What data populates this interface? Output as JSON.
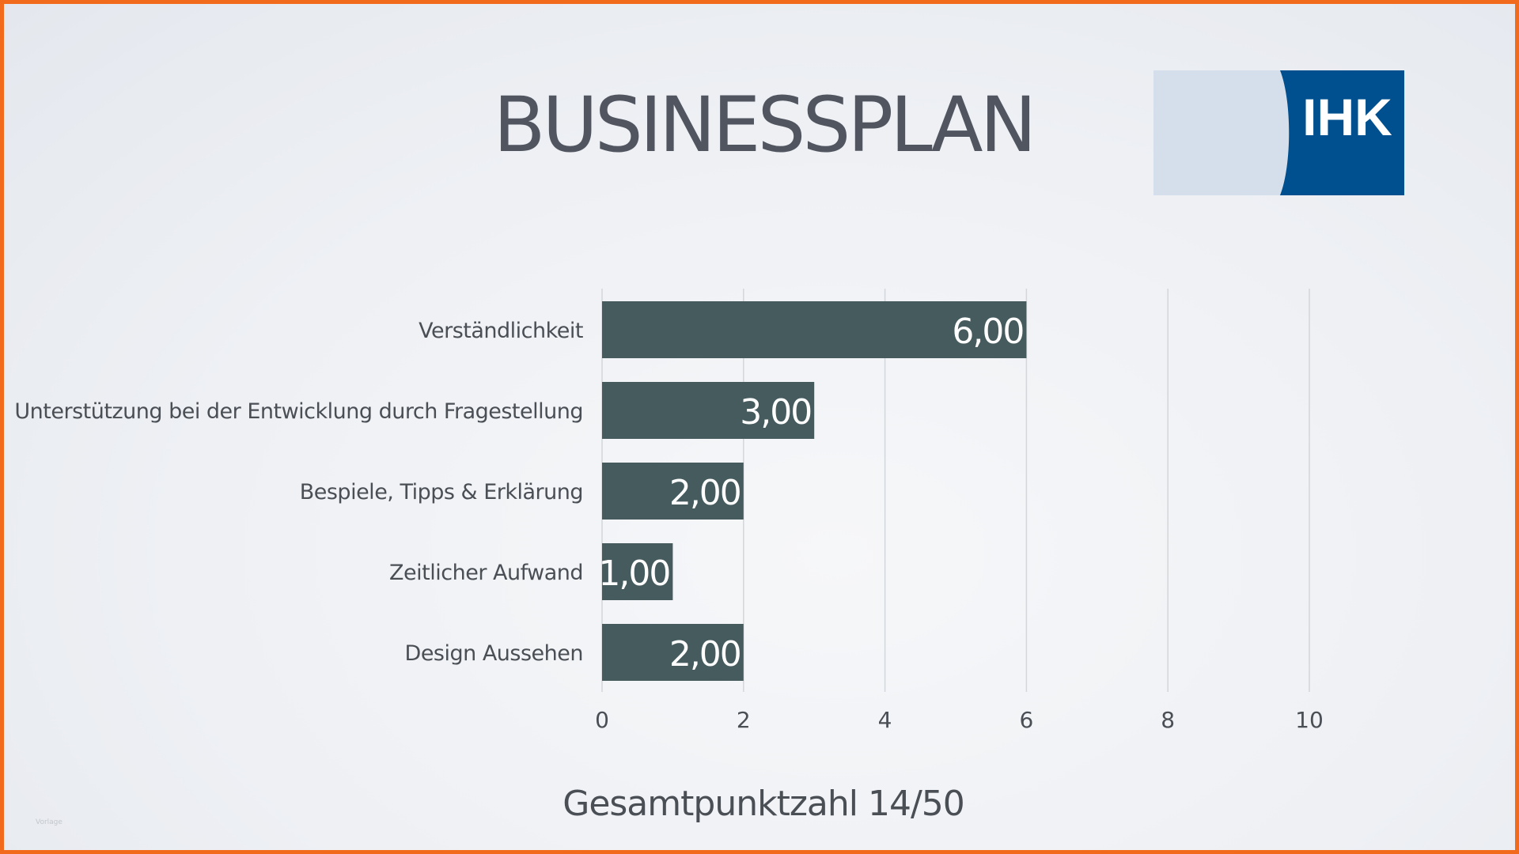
{
  "slide": {
    "title": "BUSINESSPLAN",
    "footer": "Gesamtpunktzahl 14/50",
    "corner_note": "Vorlage"
  },
  "logo": {
    "text": "IHK",
    "colors": {
      "dark": "#00508f",
      "light": "#d4dfeb"
    }
  },
  "chart_data": {
    "type": "bar",
    "orientation": "horizontal",
    "categories": [
      "Verständlichkeit",
      "Unterstützung bei der Entwicklung durch Fragestellung",
      "Bespiele, Tipps & Erklärung",
      "Zeitlicher Aufwand",
      "Design Aussehen"
    ],
    "values": [
      6,
      3,
      2,
      1,
      2
    ],
    "value_labels": [
      "6,00",
      "3,00",
      "2,00",
      "1,00",
      "2,00"
    ],
    "xlim": [
      0,
      10
    ],
    "xticks": [
      0,
      2,
      4,
      6,
      8,
      10
    ],
    "xtick_labels": [
      "0",
      "2",
      "4",
      "6",
      "8",
      "10"
    ],
    "grid": "vertical",
    "bar_color": "#465b5e",
    "grid_color": "#d3d6da",
    "label_color": "#4a4e55",
    "value_label_color": "#ffffff"
  }
}
